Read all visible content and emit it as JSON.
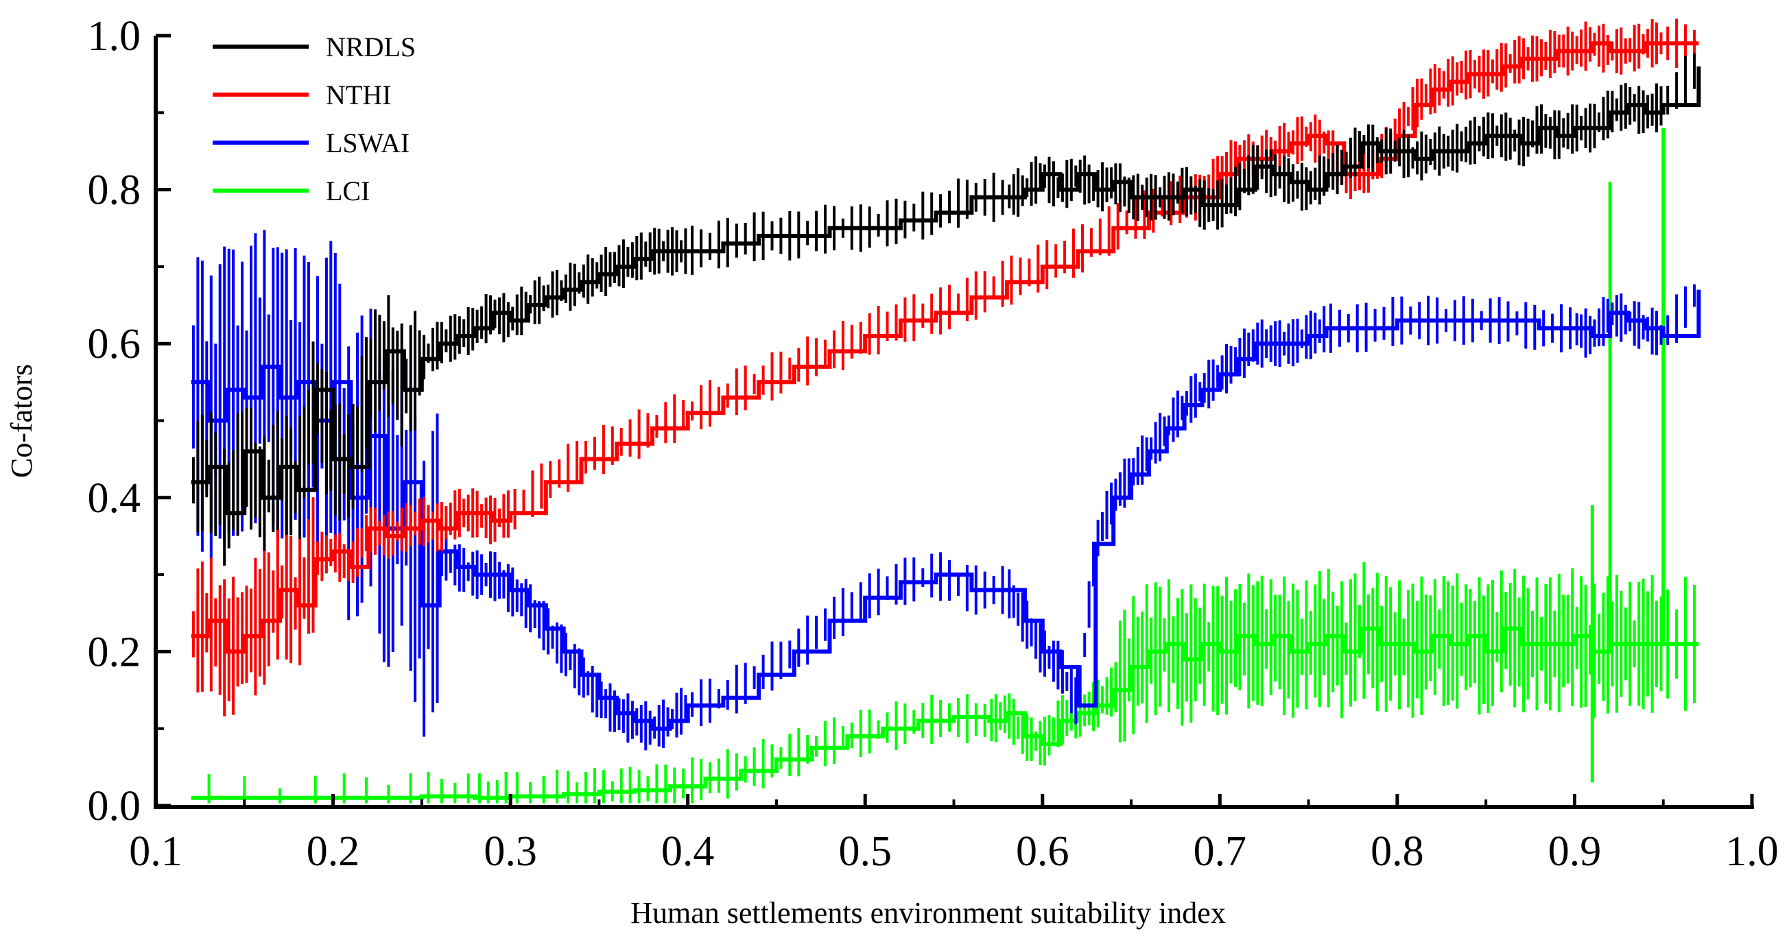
{
  "chart_data": {
    "type": "line",
    "title": "",
    "xlabel": "Human settlements environment suitability index",
    "ylabel": "Co-fators",
    "xlim": [
      0.1,
      1.0
    ],
    "ylim": [
      0.0,
      1.0
    ],
    "xticks": [
      "0.1",
      "0.2",
      "0.3",
      "0.4",
      "0.5",
      "0.6",
      "0.7",
      "0.8",
      "0.9",
      "1.0"
    ],
    "yticks": [
      "0.0",
      "0.2",
      "0.4",
      "0.6",
      "0.8",
      "1.0"
    ],
    "grid": false,
    "legend_position": "top-left",
    "series": [
      {
        "name": "NRDLS",
        "color": "#000000",
        "x": [
          0.12,
          0.13,
          0.14,
          0.15,
          0.16,
          0.17,
          0.18,
          0.19,
          0.2,
          0.21,
          0.22,
          0.23,
          0.24,
          0.25,
          0.26,
          0.27,
          0.28,
          0.29,
          0.3,
          0.31,
          0.32,
          0.33,
          0.34,
          0.35,
          0.36,
          0.37,
          0.38,
          0.39,
          0.4,
          0.42,
          0.44,
          0.46,
          0.48,
          0.5,
          0.52,
          0.54,
          0.56,
          0.58,
          0.59,
          0.6,
          0.61,
          0.62,
          0.63,
          0.64,
          0.65,
          0.66,
          0.67,
          0.68,
          0.69,
          0.7,
          0.71,
          0.72,
          0.73,
          0.74,
          0.75,
          0.76,
          0.77,
          0.78,
          0.79,
          0.8,
          0.81,
          0.82,
          0.83,
          0.84,
          0.85,
          0.86,
          0.87,
          0.88,
          0.89,
          0.9,
          0.91,
          0.92,
          0.93,
          0.94,
          0.95,
          0.97
        ],
        "y": [
          0.42,
          0.44,
          0.38,
          0.46,
          0.4,
          0.44,
          0.41,
          0.54,
          0.45,
          0.44,
          0.55,
          0.59,
          0.54,
          0.58,
          0.6,
          0.61,
          0.62,
          0.64,
          0.63,
          0.65,
          0.66,
          0.67,
          0.68,
          0.69,
          0.7,
          0.71,
          0.72,
          0.72,
          0.72,
          0.73,
          0.74,
          0.74,
          0.75,
          0.75,
          0.76,
          0.77,
          0.79,
          0.79,
          0.8,
          0.82,
          0.8,
          0.82,
          0.8,
          0.81,
          0.79,
          0.79,
          0.79,
          0.8,
          0.78,
          0.78,
          0.8,
          0.83,
          0.82,
          0.81,
          0.8,
          0.82,
          0.83,
          0.86,
          0.85,
          0.85,
          0.84,
          0.85,
          0.85,
          0.86,
          0.87,
          0.87,
          0.86,
          0.88,
          0.87,
          0.88,
          0.88,
          0.9,
          0.91,
          0.9,
          0.91,
          0.96
        ]
      },
      {
        "name": "NTHI",
        "color": "#ff0000",
        "x": [
          0.12,
          0.13,
          0.14,
          0.15,
          0.16,
          0.17,
          0.18,
          0.19,
          0.2,
          0.21,
          0.22,
          0.23,
          0.24,
          0.25,
          0.26,
          0.27,
          0.28,
          0.29,
          0.3,
          0.32,
          0.34,
          0.36,
          0.38,
          0.4,
          0.42,
          0.44,
          0.46,
          0.48,
          0.5,
          0.52,
          0.54,
          0.56,
          0.58,
          0.6,
          0.62,
          0.64,
          0.66,
          0.68,
          0.69,
          0.7,
          0.71,
          0.72,
          0.73,
          0.74,
          0.75,
          0.76,
          0.77,
          0.78,
          0.79,
          0.8,
          0.81,
          0.82,
          0.83,
          0.84,
          0.85,
          0.86,
          0.87,
          0.88,
          0.89,
          0.9,
          0.91,
          0.92,
          0.93,
          0.94,
          0.95,
          0.97
        ],
        "y": [
          0.22,
          0.24,
          0.2,
          0.22,
          0.24,
          0.28,
          0.26,
          0.32,
          0.33,
          0.31,
          0.36,
          0.35,
          0.36,
          0.37,
          0.36,
          0.38,
          0.38,
          0.37,
          0.38,
          0.42,
          0.45,
          0.47,
          0.49,
          0.51,
          0.53,
          0.55,
          0.57,
          0.59,
          0.61,
          0.63,
          0.64,
          0.66,
          0.68,
          0.7,
          0.72,
          0.75,
          0.77,
          0.79,
          0.79,
          0.82,
          0.84,
          0.84,
          0.85,
          0.86,
          0.87,
          0.86,
          0.82,
          0.82,
          0.84,
          0.87,
          0.91,
          0.93,
          0.94,
          0.95,
          0.95,
          0.96,
          0.97,
          0.97,
          0.98,
          0.98,
          0.99,
          0.98,
          0.98,
          0.99,
          0.99,
          0.99
        ]
      },
      {
        "name": "LSWAI",
        "color": "#0000ff",
        "x": [
          0.12,
          0.13,
          0.14,
          0.15,
          0.16,
          0.17,
          0.18,
          0.19,
          0.2,
          0.21,
          0.22,
          0.23,
          0.24,
          0.25,
          0.26,
          0.27,
          0.28,
          0.29,
          0.3,
          0.31,
          0.32,
          0.33,
          0.34,
          0.35,
          0.36,
          0.37,
          0.38,
          0.39,
          0.4,
          0.42,
          0.44,
          0.46,
          0.48,
          0.5,
          0.52,
          0.54,
          0.56,
          0.58,
          0.59,
          0.6,
          0.61,
          0.62,
          0.63,
          0.64,
          0.65,
          0.66,
          0.67,
          0.68,
          0.69,
          0.7,
          0.71,
          0.72,
          0.73,
          0.74,
          0.75,
          0.76,
          0.78,
          0.8,
          0.82,
          0.84,
          0.86,
          0.88,
          0.9,
          0.91,
          0.92,
          0.93,
          0.94,
          0.95,
          0.97
        ],
        "y": [
          0.55,
          0.5,
          0.54,
          0.53,
          0.57,
          0.53,
          0.55,
          0.5,
          0.55,
          0.4,
          0.48,
          0.36,
          0.42,
          0.26,
          0.33,
          0.31,
          0.3,
          0.3,
          0.28,
          0.26,
          0.23,
          0.2,
          0.17,
          0.14,
          0.12,
          0.11,
          0.1,
          0.11,
          0.13,
          0.14,
          0.17,
          0.2,
          0.24,
          0.27,
          0.29,
          0.3,
          0.28,
          0.28,
          0.24,
          0.2,
          0.18,
          0.13,
          0.34,
          0.4,
          0.43,
          0.46,
          0.49,
          0.52,
          0.54,
          0.56,
          0.58,
          0.6,
          0.6,
          0.6,
          0.61,
          0.62,
          0.62,
          0.63,
          0.63,
          0.63,
          0.63,
          0.62,
          0.62,
          0.61,
          0.64,
          0.63,
          0.62,
          0.61,
          0.67
        ]
      },
      {
        "name": "LCI",
        "color": "#00ff00",
        "x": [
          0.12,
          0.2,
          0.25,
          0.28,
          0.3,
          0.33,
          0.35,
          0.37,
          0.39,
          0.41,
          0.43,
          0.45,
          0.47,
          0.49,
          0.51,
          0.53,
          0.55,
          0.57,
          0.58,
          0.59,
          0.6,
          0.61,
          0.62,
          0.63,
          0.64,
          0.65,
          0.66,
          0.67,
          0.68,
          0.69,
          0.7,
          0.71,
          0.72,
          0.73,
          0.74,
          0.75,
          0.76,
          0.77,
          0.78,
          0.79,
          0.8,
          0.81,
          0.82,
          0.83,
          0.84,
          0.85,
          0.86,
          0.87,
          0.88,
          0.89,
          0.9,
          0.91,
          0.92,
          0.93,
          0.94,
          0.95,
          0.97
        ],
        "y": [
          0.01,
          0.01,
          0.012,
          0.01,
          0.012,
          0.015,
          0.018,
          0.02,
          0.025,
          0.035,
          0.045,
          0.06,
          0.075,
          0.09,
          0.1,
          0.11,
          0.115,
          0.11,
          0.12,
          0.09,
          0.08,
          0.11,
          0.12,
          0.13,
          0.15,
          0.18,
          0.2,
          0.21,
          0.19,
          0.21,
          0.2,
          0.22,
          0.21,
          0.22,
          0.2,
          0.21,
          0.22,
          0.2,
          0.23,
          0.21,
          0.21,
          0.2,
          0.22,
          0.21,
          0.22,
          0.2,
          0.23,
          0.21,
          0.21,
          0.21,
          0.22,
          0.2,
          0.21,
          0.21,
          0.21,
          0.21,
          0.21
        ]
      }
    ]
  }
}
